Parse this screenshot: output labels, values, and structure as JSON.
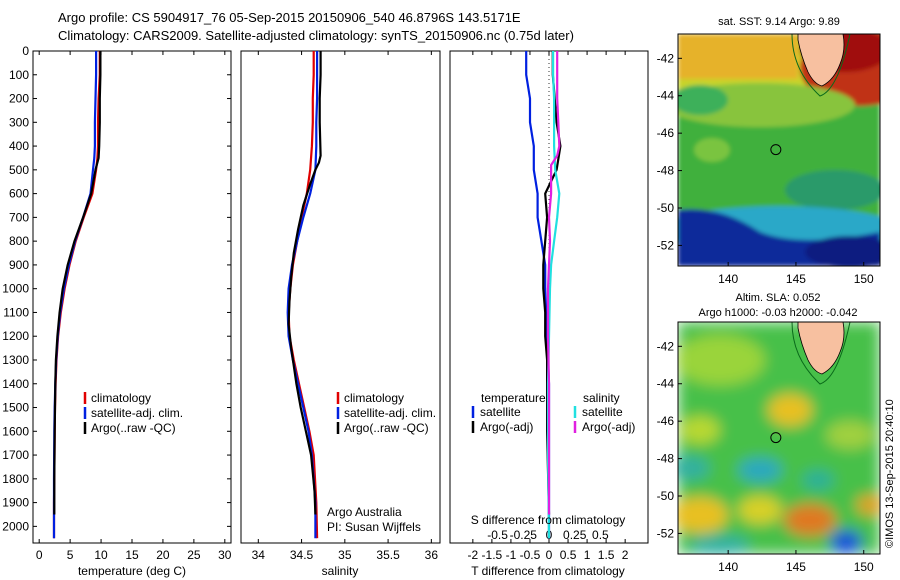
{
  "header": {
    "line1": "Argo profile: CS 5904917_76 05-Sep-2015 20150906_540 46.8796S 143.5171E",
    "line2": "Climatology: CARS2009. Satellite-adjusted climatology: synTS_20150906.nc (0.75d later)"
  },
  "footer_stamp": "©IMOS 13-Sep-2015 20:40:10",
  "colors": {
    "climatology": "#e00000",
    "satellite": "#0020e0",
    "argo": "#000000",
    "salinity_sat": "#20e0e0",
    "salinity_argo": "#e020e0"
  },
  "depth_axis": {
    "ticks": [
      "0",
      "100",
      "200",
      "300",
      "400",
      "500",
      "600",
      "700",
      "800",
      "900",
      "1000",
      "1100",
      "1200",
      "1300",
      "1400",
      "1500",
      "1600",
      "1700",
      "1800",
      "1900",
      "2000"
    ],
    "ylim": [
      0,
      2070
    ]
  },
  "legend_main": {
    "climatology": "climatology",
    "satellite": "satellite-adj. clim.",
    "argo": "Argo(..raw -QC)"
  },
  "legend_diff": {
    "temperature": "temperature",
    "salinity": "salinity",
    "satellite": "satellite",
    "argo": "Argo(-adj)"
  },
  "annotation_float": {
    "line1": "Argo Australia",
    "line2": "PI: Susan Wijffels"
  },
  "chart_data": [
    {
      "type": "line",
      "xlabel": "temperature (deg C)",
      "ylabel": "",
      "xlim": [
        -1,
        31
      ],
      "xticks": [
        "0",
        "5",
        "10",
        "15",
        "20",
        "25",
        "30"
      ],
      "ylim": [
        0,
        2070
      ],
      "series": [
        {
          "name": "climatology",
          "x": [
            9.8,
            9.8,
            9.6,
            9.5,
            9.5,
            9.4,
            9.2,
            8.6,
            7.2,
            5.9,
            4.9,
            4.1,
            3.5,
            3.05,
            2.8,
            2.65,
            2.55,
            2.5,
            2.45,
            2.4,
            2.4
          ],
          "y": [
            0,
            100,
            200,
            300,
            400,
            450,
            500,
            600,
            700,
            800,
            900,
            1000,
            1100,
            1200,
            1300,
            1400,
            1500,
            1600,
            1800,
            1900,
            2050
          ]
        },
        {
          "name": "satellite-adj. clim.",
          "x": [
            9.2,
            9.2,
            9.1,
            9.0,
            9.0,
            8.9,
            8.7,
            8.3,
            7.1,
            5.8,
            4.8,
            4.0,
            3.4,
            3.0,
            2.75,
            2.6,
            2.5,
            2.45,
            2.4,
            2.4,
            2.4
          ],
          "y": [
            0,
            100,
            200,
            300,
            400,
            450,
            500,
            600,
            700,
            800,
            900,
            1000,
            1100,
            1200,
            1300,
            1400,
            1500,
            1600,
            1800,
            1900,
            2050
          ]
        },
        {
          "name": "Argo(..raw -QC)",
          "x": [
            9.9,
            9.9,
            9.8,
            9.8,
            9.7,
            9.6,
            9.1,
            8.4,
            7.1,
            5.7,
            4.6,
            3.8,
            3.3,
            2.95,
            2.7,
            2.6,
            2.55,
            2.5,
            2.45,
            2.45
          ],
          "y": [
            0,
            100,
            200,
            300,
            400,
            450,
            500,
            600,
            700,
            800,
            900,
            1000,
            1100,
            1200,
            1300,
            1400,
            1500,
            1600,
            1800,
            1950
          ]
        }
      ]
    },
    {
      "type": "line",
      "xlabel": "salinity",
      "ylabel": "",
      "xlim": [
        33.8,
        36.1
      ],
      "xticks": [
        "34",
        "34.5",
        "35",
        "35.5",
        "36"
      ],
      "ylim": [
        0,
        2070
      ],
      "series": [
        {
          "name": "climatology",
          "x": [
            34.64,
            34.64,
            34.63,
            34.63,
            34.62,
            34.6,
            34.56,
            34.5,
            34.45,
            34.4,
            34.37,
            34.35,
            34.36,
            34.41,
            34.47,
            34.53,
            34.59,
            34.64,
            34.67,
            34.68
          ],
          "y": [
            0,
            100,
            200,
            300,
            400,
            500,
            600,
            700,
            800,
            900,
            1000,
            1100,
            1200,
            1300,
            1400,
            1500,
            1600,
            1700,
            1900,
            2050
          ]
        },
        {
          "name": "satellite-adj. clim.",
          "x": [
            34.68,
            34.68,
            34.68,
            34.67,
            34.67,
            34.66,
            34.6,
            34.52,
            34.45,
            34.39,
            34.35,
            34.34,
            34.35,
            34.4,
            34.46,
            34.52,
            34.58,
            34.62,
            34.66,
            34.66
          ],
          "y": [
            0,
            100,
            200,
            300,
            400,
            500,
            600,
            700,
            800,
            900,
            1000,
            1100,
            1200,
            1300,
            1400,
            1500,
            1600,
            1700,
            1900,
            2050
          ]
        },
        {
          "name": "Argo(..raw -QC)",
          "x": [
            34.72,
            34.72,
            34.71,
            34.71,
            34.72,
            34.7,
            34.66,
            34.6,
            34.52,
            34.46,
            34.41,
            34.38,
            34.36,
            34.35,
            34.38,
            34.44,
            34.49,
            34.55,
            34.61,
            34.65,
            34.66
          ],
          "y": [
            0,
            100,
            200,
            300,
            440,
            470,
            500,
            560,
            650,
            750,
            850,
            950,
            1050,
            1150,
            1250,
            1400,
            1500,
            1600,
            1700,
            1850,
            1950
          ]
        }
      ]
    },
    {
      "type": "line",
      "xlabel": "T difference from climatology",
      "xlabel_top": "S difference from climatology",
      "xlim": [
        -2.6,
        2.6
      ],
      "xticks": [
        "-2",
        "-1.5",
        "-1",
        "-0.5",
        "0",
        "0.5",
        "1",
        "1.5",
        "2"
      ],
      "xticks_top": [
        "-0.5",
        "-0.25",
        "0",
        "0.25",
        "0.5"
      ],
      "ylim": [
        0,
        2070
      ],
      "series": [
        {
          "name": "temperature satellite",
          "x": [
            -0.6,
            -0.6,
            -0.5,
            -0.5,
            -0.4,
            -0.4,
            -0.3,
            -0.3,
            -0.2,
            -0.1,
            -0.1,
            -0.05,
            0.0,
            0.0,
            0.0
          ],
          "y": [
            0,
            100,
            200,
            300,
            400,
            500,
            600,
            700,
            800,
            900,
            1000,
            1200,
            1400,
            1700,
            2050
          ]
        },
        {
          "name": "temperature Argo(-adj)",
          "x": [
            0.1,
            0.1,
            0.15,
            0.2,
            0.3,
            0.25,
            0.2,
            -0.1,
            -0.05,
            -0.1,
            -0.15,
            -0.15,
            -0.1,
            -0.1,
            -0.05,
            -0.05,
            0.0
          ],
          "y": [
            0,
            100,
            200,
            300,
            400,
            450,
            500,
            600,
            700,
            800,
            900,
            1000,
            1100,
            1200,
            1300,
            1600,
            1950
          ]
        },
        {
          "name": "salinity satellite",
          "x": [
            0.04,
            0.04,
            0.05,
            0.05,
            0.05,
            0.06,
            0.1,
            0.08,
            0.05,
            0.02,
            0.01,
            0.0,
            -0.01,
            -0.01,
            0.0
          ],
          "y": [
            0,
            100,
            200,
            300,
            400,
            500,
            600,
            700,
            800,
            900,
            1000,
            1200,
            1400,
            1700,
            2050
          ]
        },
        {
          "name": "salinity Argo(-adj)",
          "x": [
            0.08,
            0.08,
            0.08,
            0.09,
            0.1,
            0.08,
            0.02,
            0.02,
            0.0,
            0.01,
            0.0,
            -0.01,
            -0.01,
            0.0,
            0.0,
            0.0
          ],
          "y": [
            0,
            100,
            200,
            300,
            400,
            440,
            480,
            600,
            700,
            800,
            900,
            1000,
            1200,
            1400,
            1700,
            1950
          ]
        }
      ]
    },
    {
      "type": "heatmap",
      "title": "sat. SST: 9.14 Argo: 9.89",
      "xticks": [
        "140",
        "145",
        "150"
      ],
      "yticks": [
        "-42",
        "-44",
        "-46",
        "-48",
        "-50",
        "-52"
      ],
      "xlim": [
        136.3,
        151.2
      ],
      "ylim": [
        -53.1,
        -40.7
      ],
      "float_position": {
        "lon": 143.5171,
        "lat": -46.8796
      }
    },
    {
      "type": "heatmap",
      "title": "Altim. SLA: 0.052",
      "subtitle": "Argo h1000: -0.03 h2000: -0.042",
      "xticks": [
        "140",
        "145",
        "150"
      ],
      "yticks": [
        "-42",
        "-44",
        "-46",
        "-48",
        "-50",
        "-52"
      ],
      "xlim": [
        136.3,
        151.2
      ],
      "ylim": [
        -53.1,
        -40.7
      ],
      "float_position": {
        "lon": 143.5171,
        "lat": -46.8796
      }
    }
  ]
}
